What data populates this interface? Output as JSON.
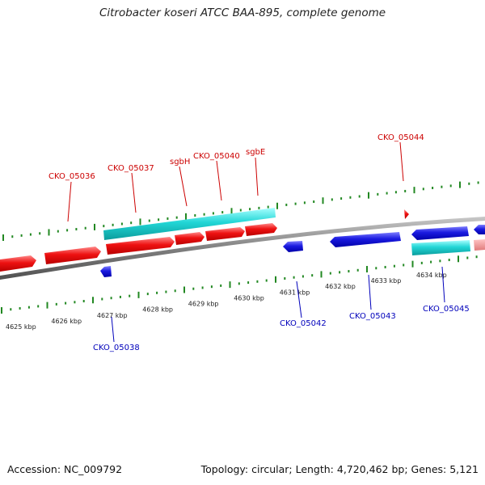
{
  "title": "Citrobacter koseri ATCC BAA-895, complete genome",
  "footer": {
    "accession": "Accession: NC_009792",
    "summary": "Topology: circular; Length: 4,720,462 bp; Genes: 5,121"
  },
  "colors": {
    "forward_gene": "#ee1111",
    "reverse_gene": "#1111dd",
    "forward_label": "#cc0000",
    "reverse_label": "#0000bb",
    "rna": "#19cccc",
    "tick": "#228822",
    "backbone": "#8a8a8a"
  },
  "scale": {
    "unit": "kbp",
    "tick_labels": [
      "4625 kbp",
      "4626 kbp",
      "4627 kbp",
      "4628 kbp",
      "4629 kbp",
      "4630 kbp",
      "4631 kbp",
      "4632 kbp",
      "4633 kbp",
      "4634 kbp"
    ]
  },
  "gene_labels": {
    "forward": [
      "CKO_05036",
      "CKO_05037",
      "sgbH",
      "CKO_05040",
      "sgbE",
      "CKO_05044"
    ],
    "reverse": [
      "CKO_05038",
      "CKO_05042",
      "CKO_05043",
      "CKO_05045"
    ]
  }
}
